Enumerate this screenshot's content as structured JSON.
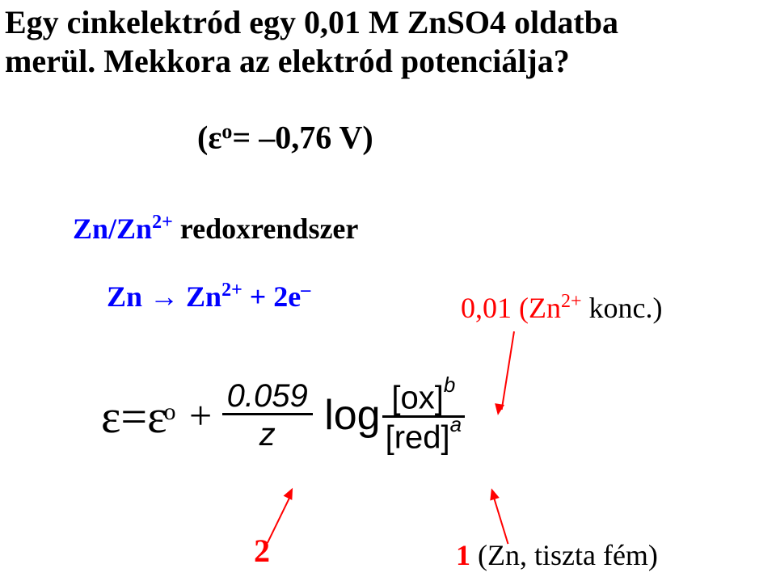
{
  "question": {
    "line1": "Egy cinkelektród egy 0,01 M ZnSO4 oldatba",
    "line2_a": "merül. Mekkora az elektród potenciálja?",
    "given_prefix": "(ε",
    "given_sup": "o",
    "given_suffix": "= –0,76 V)"
  },
  "redox": {
    "label_prefix": "Zn/Zn",
    "label_sup": "2+",
    "label_suffix": " redoxrendszer",
    "color": "#0000ff"
  },
  "reaction": {
    "lhs": "Zn ",
    "arrow": " → ",
    "rhs1": " Zn",
    "rhs1_sup": "2+",
    "plus": " + 2e",
    "minus": "–"
  },
  "konc": {
    "value": "0,01 ",
    "species_pre": "(Zn",
    "species_sup": "2+",
    "species_post": " konc.)",
    "color": "#ff0000"
  },
  "nernst": {
    "eps": "ε",
    "equals": "=",
    "eps2": "ε",
    "eps2_sup": "o",
    "plus": " + ",
    "frac_num": "0.059",
    "frac_den": "z",
    "log": " log",
    "ox": "[ox]",
    "ox_sup": "b",
    "red": "[red]",
    "red_sup": "a"
  },
  "annot": {
    "two": "2",
    "bottom_right": "1 (Zn, tiszta fém)"
  },
  "colors": {
    "text": "#000000",
    "red": "#ff0000",
    "blue": "#0000ff",
    "bg": "#ffffff"
  }
}
